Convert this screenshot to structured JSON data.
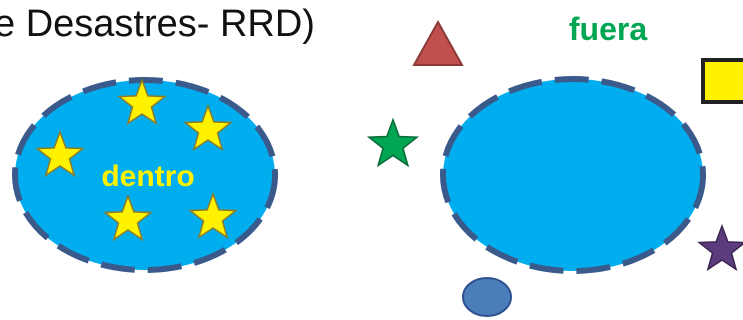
{
  "title": "e Desastres- RRD)",
  "inside_label": "dentro",
  "outside_label": "fuera",
  "colors": {
    "ellipse_fill": "#00AEEF",
    "ellipse_border": "#3A5A8C",
    "inside_star": "#FFF200",
    "inside_label": "#FFF200",
    "outside_label": "#00A651",
    "triangle": "#C0504D",
    "green_star": "#00A651",
    "square": "#FFF200",
    "purple_star": "#5C3C7E",
    "small_circle": "#4A7EBB"
  },
  "icons": {
    "inside_star": "star-icon",
    "triangle": "triangle-icon",
    "green_star": "star-icon",
    "square": "square-icon",
    "purple_star": "star-icon",
    "small_circle": "circle-icon"
  }
}
